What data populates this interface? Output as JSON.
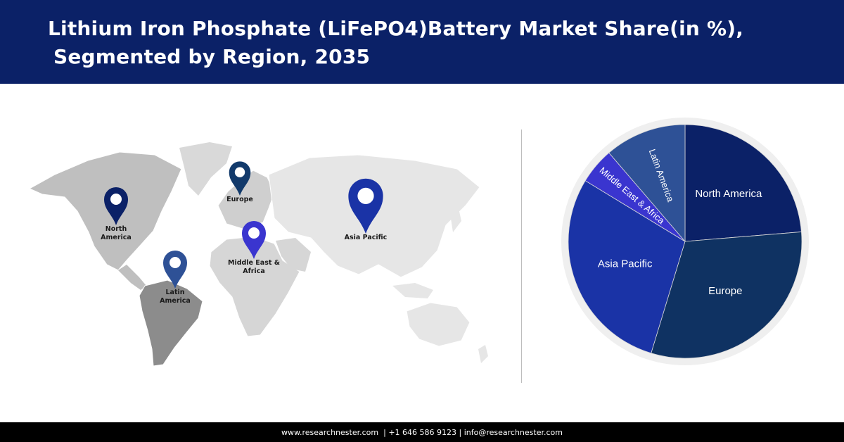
{
  "title": {
    "line1": "Lithium Iron Phosphate (LiFePO4)Battery Market Share(in %),",
    "line2": "Segmented by Region, 2035"
  },
  "map": {
    "markers": [
      {
        "label_lines": [
          "North",
          "America"
        ],
        "color": "#0b2167"
      },
      {
        "label_lines": [
          "Europe"
        ],
        "color": "#123a6b"
      },
      {
        "label_lines": [
          "Asia Pacific"
        ],
        "color": "#1a33a6"
      },
      {
        "label_lines": [
          "Middle East &",
          "Africa"
        ],
        "color": "#3a35cf"
      },
      {
        "label_lines": [
          "Latin",
          "America"
        ],
        "color": "#2e5196"
      }
    ]
  },
  "chart_data": {
    "type": "pie",
    "title": "Lithium Iron Phosphate (LiFePO4)Battery Market Share(in %), Segmented by Region, 2035",
    "slices": [
      {
        "label": "North America",
        "value": 23.7,
        "color": "#0b2167"
      },
      {
        "label": "Europe",
        "value": 31.0,
        "color": "#0f3262"
      },
      {
        "label": "Asia Pacific",
        "value": 29.0,
        "color": "#1a33a6"
      },
      {
        "label": "Middle East & Africa",
        "value": 5.0,
        "color": "#3a35cf"
      },
      {
        "label": "Latin America",
        "value": 11.3,
        "color": "#2e5196"
      }
    ],
    "start": "12 o'clock",
    "direction": "clockwise"
  },
  "footer": {
    "text": "www.researchnester.com  | +1 646 586 9123 | info@researchnester.com"
  }
}
